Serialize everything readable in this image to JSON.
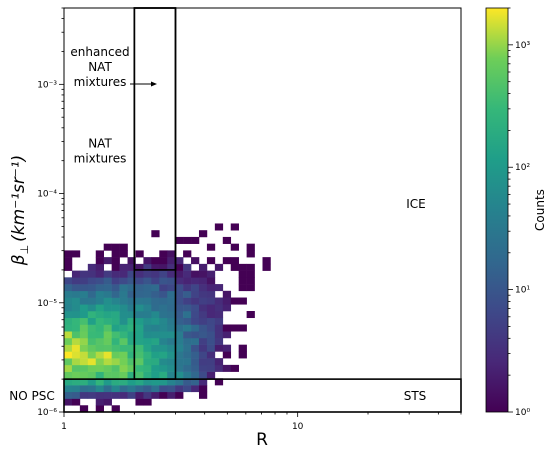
{
  "chart_data": {
    "type": "heatmap",
    "xlabel": "R",
    "ylabel_prefix": "β",
    "ylabel_sub": "⊥",
    "ylabel_units": "(km⁻¹sr⁻¹)",
    "x_scale": "log",
    "y_scale": "log",
    "xlim": [
      1,
      50
    ],
    "ylim": [
      1e-06,
      0.005
    ],
    "x_ticks": [
      {
        "value": 1,
        "label": "1"
      },
      {
        "value": 10,
        "label": "10"
      }
    ],
    "y_ticks": [
      {
        "value": 1e-06,
        "label": "10⁻⁶"
      },
      {
        "value": 1e-05,
        "label": "10⁻⁵"
      },
      {
        "value": 0.0001,
        "label": "10⁻⁴"
      },
      {
        "value": 0.001,
        "label": "10⁻³"
      }
    ],
    "colorbar": {
      "label": "Counts",
      "scale": "log",
      "range": [
        1,
        2000
      ],
      "ticks": [
        {
          "value": 1,
          "label": "10⁰"
        },
        {
          "value": 10,
          "label": "10¹"
        },
        {
          "value": 100,
          "label": "10²"
        },
        {
          "value": 1000,
          "label": "10³"
        }
      ],
      "colormap": "viridis"
    },
    "regions": [
      {
        "name": "NO PSC",
        "label": "NO PSC",
        "r_range": [
          1,
          50
        ],
        "beta_range": [
          1e-06,
          2e-06
        ]
      },
      {
        "name": "STS",
        "label": "STS",
        "r_range": [
          1,
          50
        ],
        "beta_range": [
          1e-06,
          2e-06
        ]
      },
      {
        "name": "NAT mixtures",
        "label_lines": [
          "NAT",
          "mixtures"
        ],
        "r_range": [
          2,
          3
        ],
        "beta_range": [
          2e-06,
          0.005
        ]
      },
      {
        "name": "enhanced NAT mixtures",
        "label_lines": [
          "enhanced",
          "NAT",
          "mixtures"
        ],
        "r_range": [
          2,
          3
        ],
        "beta_range": [
          2e-05,
          0.005
        ]
      },
      {
        "name": "ICE",
        "label": "ICE",
        "r_range": [
          3,
          50
        ],
        "beta_range": [
          2e-06,
          0.005
        ]
      }
    ],
    "distribution": {
      "bins_x": 50,
      "bins_y": 60,
      "core_log_r": 0.03,
      "core_log_beta": -5.45,
      "peak_count": 2000,
      "ridge_slope": 1.55
    }
  }
}
